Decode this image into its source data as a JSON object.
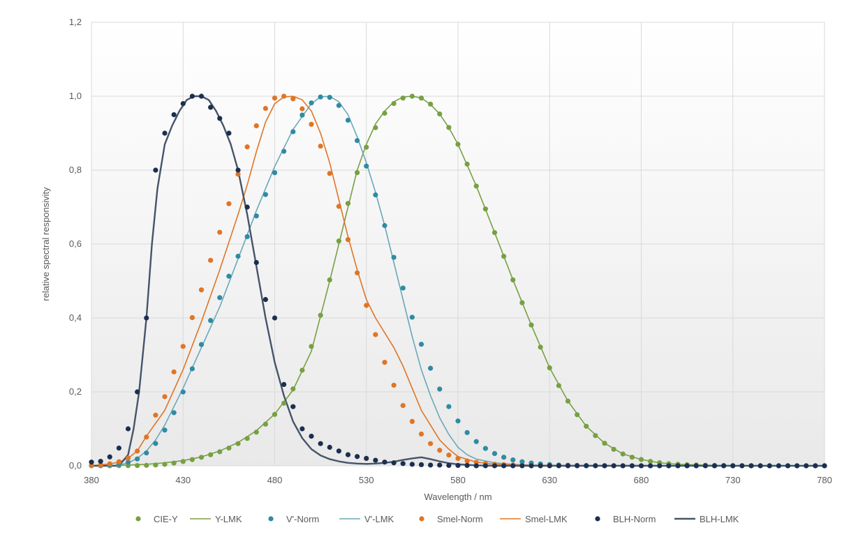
{
  "chart_data": {
    "type": "line",
    "title": "",
    "xlabel": "Wavelength / nm",
    "ylabel": "relative spectral responsivity",
    "xlim": [
      380,
      780
    ],
    "ylim": [
      0,
      1.2
    ],
    "xticks": [
      380,
      430,
      480,
      530,
      580,
      630,
      680,
      730,
      780
    ],
    "xtick_labels": [
      "380",
      "430",
      "480",
      "530",
      "580",
      "630",
      "680",
      "730",
      "780"
    ],
    "yticks": [
      0,
      0.2,
      0.4,
      0.6,
      0.8,
      1.0,
      1.2
    ],
    "ytick_labels": [
      "0,0",
      "0,2",
      "0,4",
      "0,6",
      "0,8",
      "1,0",
      "1,2"
    ],
    "grid": true,
    "legend_position": "bottom",
    "series": [
      {
        "name": "CIE-Y",
        "kind": "markers",
        "color": "#77A043",
        "x": [
          380,
          385,
          390,
          395,
          400,
          405,
          410,
          415,
          420,
          425,
          430,
          435,
          440,
          445,
          450,
          455,
          460,
          465,
          470,
          475,
          480,
          485,
          490,
          495,
          500,
          505,
          510,
          515,
          520,
          525,
          530,
          535,
          540,
          545,
          550,
          555,
          560,
          565,
          570,
          575,
          580,
          585,
          590,
          595,
          600,
          605,
          610,
          615,
          620,
          625,
          630,
          635,
          640,
          645,
          650,
          655,
          660,
          665,
          670,
          675,
          680,
          685,
          690,
          695,
          700,
          705,
          710,
          715,
          720,
          725,
          730,
          735,
          740,
          745,
          750,
          755,
          760,
          765,
          770,
          775,
          780
        ],
        "y": [
          0.0,
          0.0001,
          0.0001,
          0.0002,
          0.0004,
          0.0006,
          0.0012,
          0.0022,
          0.004,
          0.0073,
          0.0116,
          0.0168,
          0.023,
          0.0298,
          0.038,
          0.048,
          0.06,
          0.0739,
          0.091,
          0.1126,
          0.139,
          0.1693,
          0.208,
          0.2586,
          0.323,
          0.4073,
          0.503,
          0.6082,
          0.71,
          0.7932,
          0.862,
          0.9149,
          0.954,
          0.9803,
          0.995,
          1.0,
          0.995,
          0.9786,
          0.952,
          0.9154,
          0.87,
          0.8163,
          0.757,
          0.6949,
          0.631,
          0.5668,
          0.503,
          0.4412,
          0.381,
          0.321,
          0.265,
          0.217,
          0.175,
          0.1382,
          0.107,
          0.0816,
          0.061,
          0.0446,
          0.032,
          0.0232,
          0.017,
          0.0119,
          0.0082,
          0.0057,
          0.0041,
          0.0029,
          0.0021,
          0.0015,
          0.001,
          0.0007,
          0.0005,
          0.0004,
          0.0003,
          0.0002,
          0.0001,
          0.0001,
          0.0001,
          0.0,
          0.0,
          0.0,
          0.0
        ]
      },
      {
        "name": "Y-LMK",
        "kind": "line",
        "color": "#77A043",
        "width": 1.6,
        "x": [
          380,
          390,
          400,
          410,
          420,
          430,
          440,
          450,
          460,
          470,
          480,
          490,
          500,
          510,
          520,
          525,
          530,
          535,
          540,
          545,
          550,
          555,
          560,
          565,
          570,
          575,
          580,
          590,
          600,
          610,
          620,
          630,
          640,
          650,
          660,
          670,
          680,
          690,
          700,
          720,
          740,
          760,
          780
        ],
        "y": [
          0.0,
          0.0,
          0.002,
          0.004,
          0.008,
          0.014,
          0.024,
          0.04,
          0.063,
          0.095,
          0.14,
          0.205,
          0.31,
          0.5,
          0.7,
          0.8,
          0.87,
          0.925,
          0.96,
          0.985,
          0.998,
          1.0,
          0.995,
          0.978,
          0.952,
          0.915,
          0.87,
          0.757,
          0.631,
          0.503,
          0.381,
          0.265,
          0.175,
          0.107,
          0.061,
          0.032,
          0.017,
          0.008,
          0.004,
          0.001,
          0.0,
          0.0,
          0.0
        ]
      },
      {
        "name": "V'-Norm",
        "kind": "markers",
        "color": "#2E8BA3",
        "x": [
          380,
          385,
          390,
          395,
          400,
          405,
          410,
          415,
          420,
          425,
          430,
          435,
          440,
          445,
          450,
          455,
          460,
          465,
          470,
          475,
          480,
          485,
          490,
          495,
          500,
          505,
          510,
          515,
          520,
          525,
          530,
          535,
          540,
          545,
          550,
          555,
          560,
          565,
          570,
          575,
          580,
          585,
          590,
          595,
          600,
          605,
          610,
          615,
          620,
          625,
          630,
          635,
          640,
          645,
          650,
          655,
          660,
          665,
          670,
          675,
          680,
          685,
          690,
          695,
          700,
          705,
          710,
          715,
          720,
          725,
          730,
          735,
          740,
          745,
          750,
          755,
          760,
          765,
          770,
          775,
          780
        ],
        "y": [
          0.0006,
          0.0011,
          0.0022,
          0.0045,
          0.0093,
          0.0185,
          0.0348,
          0.0604,
          0.0966,
          0.1436,
          0.1998,
          0.2625,
          0.3281,
          0.3931,
          0.455,
          0.513,
          0.567,
          0.62,
          0.676,
          0.734,
          0.793,
          0.851,
          0.904,
          0.949,
          0.982,
          0.998,
          0.997,
          0.975,
          0.935,
          0.88,
          0.811,
          0.733,
          0.65,
          0.564,
          0.481,
          0.402,
          0.3288,
          0.2639,
          0.2076,
          0.1602,
          0.1212,
          0.0899,
          0.0655,
          0.0469,
          0.0331,
          0.0231,
          0.0159,
          0.0109,
          0.0074,
          0.005,
          0.0033,
          0.0022,
          0.0015,
          0.001,
          0.0007,
          0.0005,
          0.0003,
          0.0002,
          0.0001,
          0.0001,
          0.0001,
          0.0,
          0.0,
          0.0,
          0.0,
          0.0,
          0.0,
          0.0,
          0.0,
          0.0,
          0.0,
          0.0,
          0.0,
          0.0,
          0.0,
          0.0,
          0.0,
          0.0,
          0.0,
          0.0,
          0.0
        ]
      },
      {
        "name": "V'-LMK",
        "kind": "line",
        "color": "#6AA8B8",
        "width": 1.6,
        "x": [
          380,
          390,
          395,
          400,
          405,
          410,
          415,
          420,
          425,
          430,
          440,
          450,
          460,
          470,
          480,
          490,
          500,
          505,
          510,
          515,
          520,
          525,
          530,
          535,
          540,
          545,
          550,
          555,
          560,
          565,
          570,
          575,
          580,
          585,
          590,
          600,
          610,
          620,
          640,
          680,
          780
        ],
        "y": [
          0.0,
          0.0,
          0.002,
          0.008,
          0.02,
          0.04,
          0.07,
          0.11,
          0.16,
          0.21,
          0.32,
          0.43,
          0.56,
          0.69,
          0.81,
          0.91,
          0.98,
          0.998,
          1.0,
          0.985,
          0.95,
          0.89,
          0.82,
          0.74,
          0.65,
          0.55,
          0.45,
          0.35,
          0.26,
          0.19,
          0.13,
          0.085,
          0.05,
          0.03,
          0.018,
          0.008,
          0.004,
          0.002,
          0.0,
          0.0,
          0.0
        ]
      },
      {
        "name": "Smel-Norm",
        "kind": "markers",
        "color": "#E07525",
        "x": [
          380,
          385,
          390,
          395,
          400,
          405,
          410,
          415,
          420,
          425,
          430,
          435,
          440,
          445,
          450,
          455,
          460,
          465,
          470,
          475,
          480,
          485,
          490,
          495,
          500,
          505,
          510,
          515,
          520,
          525,
          530,
          535,
          540,
          545,
          550,
          555,
          560,
          565,
          570,
          575,
          580,
          585,
          590,
          595,
          600,
          605,
          610,
          615,
          620,
          625,
          630
        ],
        "y": [
          0.0009,
          0.0022,
          0.0052,
          0.0109,
          0.0207,
          0.0398,
          0.0778,
          0.137,
          0.187,
          0.254,
          0.323,
          0.401,
          0.476,
          0.556,
          0.632,
          0.709,
          0.789,
          0.863,
          0.92,
          0.967,
          0.995,
          1.0,
          0.993,
          0.966,
          0.924,
          0.865,
          0.791,
          0.702,
          0.612,
          0.522,
          0.434,
          0.355,
          0.28,
          0.218,
          0.163,
          0.12,
          0.086,
          0.06,
          0.042,
          0.029,
          0.02,
          0.013,
          0.009,
          0.006,
          0.004,
          0.003,
          0.002,
          0.001,
          0.001,
          0.0,
          0.0
        ]
      },
      {
        "name": "Smel-LMK",
        "kind": "line",
        "color": "#E07525",
        "width": 1.6,
        "x": [
          380,
          390,
          395,
          400,
          405,
          410,
          420,
          430,
          440,
          450,
          460,
          465,
          470,
          475,
          480,
          485,
          490,
          495,
          500,
          505,
          510,
          515,
          520,
          525,
          530,
          535,
          540,
          545,
          550,
          555,
          560,
          565,
          570,
          575,
          580,
          590,
          600,
          620,
          780
        ],
        "y": [
          0.0,
          0.005,
          0.01,
          0.02,
          0.04,
          0.08,
          0.15,
          0.26,
          0.39,
          0.53,
          0.68,
          0.76,
          0.85,
          0.93,
          0.98,
          0.998,
          1.0,
          0.99,
          0.96,
          0.9,
          0.82,
          0.72,
          0.62,
          0.53,
          0.45,
          0.4,
          0.36,
          0.32,
          0.27,
          0.21,
          0.15,
          0.11,
          0.07,
          0.045,
          0.025,
          0.01,
          0.004,
          0.001,
          0.0
        ]
      },
      {
        "name": "BLH-Norm",
        "kind": "markers",
        "color": "#1B2F4F",
        "x": [
          380,
          385,
          390,
          395,
          400,
          405,
          410,
          415,
          420,
          425,
          430,
          435,
          440,
          445,
          450,
          455,
          460,
          465,
          470,
          475,
          480,
          485,
          490,
          495,
          500,
          505,
          510,
          515,
          520,
          525,
          530,
          535,
          540,
          545,
          550,
          555,
          560,
          565,
          570,
          575,
          580,
          585,
          590,
          595,
          600,
          605,
          610,
          615,
          620,
          625,
          630,
          635,
          640,
          645,
          650,
          655,
          660,
          665,
          670,
          675,
          680,
          685,
          690,
          695,
          700,
          705,
          710,
          715,
          720,
          725,
          730,
          735,
          740,
          745,
          750,
          755,
          760,
          765,
          770,
          775,
          780
        ],
        "y": [
          0.01,
          0.012,
          0.024,
          0.048,
          0.1,
          0.2,
          0.4,
          0.8,
          0.9,
          0.95,
          0.98,
          1.0,
          1.0,
          0.97,
          0.94,
          0.9,
          0.8,
          0.7,
          0.55,
          0.45,
          0.4,
          0.22,
          0.16,
          0.1,
          0.08,
          0.06,
          0.05,
          0.04,
          0.03,
          0.025,
          0.02,
          0.015,
          0.01,
          0.008,
          0.006,
          0.004,
          0.003,
          0.002,
          0.002,
          0.001,
          0.001,
          0.001,
          0.0,
          0.0,
          0.0,
          0.0,
          0.0,
          0.0,
          0.0,
          0.0,
          0.0,
          0.0,
          0.0,
          0.0,
          0.0,
          0.0,
          0.0,
          0.0,
          0.0,
          0.0,
          0.0,
          0.0,
          0.0,
          0.0,
          0.0,
          0.0,
          0.0,
          0.0,
          0.0,
          0.0,
          0.0,
          0.0,
          0.0,
          0.0,
          0.0,
          0.0,
          0.0,
          0.0,
          0.0,
          0.0,
          0.0
        ]
      },
      {
        "name": "BLH-LMK",
        "kind": "line",
        "color": "#44546A",
        "width": 2.4,
        "x": [
          380,
          395,
          400,
          403,
          406,
          410,
          413,
          416,
          420,
          424,
          428,
          432,
          436,
          440,
          444,
          448,
          452,
          456,
          460,
          465,
          470,
          475,
          480,
          485,
          490,
          495,
          500,
          505,
          510,
          515,
          520,
          525,
          530,
          535,
          540,
          545,
          550,
          555,
          560,
          565,
          570,
          575,
          580,
          590,
          600,
          780
        ],
        "y": [
          0.0,
          0.0,
          0.03,
          0.1,
          0.2,
          0.4,
          0.6,
          0.75,
          0.87,
          0.92,
          0.96,
          0.99,
          1.0,
          1.0,
          0.99,
          0.96,
          0.92,
          0.87,
          0.8,
          0.68,
          0.54,
          0.4,
          0.28,
          0.19,
          0.12,
          0.075,
          0.045,
          0.028,
          0.018,
          0.012,
          0.008,
          0.006,
          0.005,
          0.006,
          0.008,
          0.011,
          0.016,
          0.02,
          0.023,
          0.018,
          0.012,
          0.007,
          0.004,
          0.001,
          0.0,
          0.0
        ]
      }
    ]
  }
}
